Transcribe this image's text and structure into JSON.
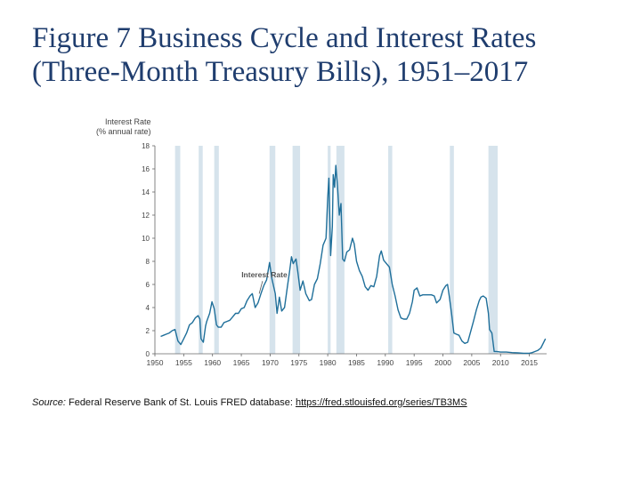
{
  "slide": {
    "title_line1": "Figure 7 Business Cycle and Interest Rates",
    "title_line2": "(Three-Month Treasury Bills), 1951–2017"
  },
  "source": {
    "label": "Source:",
    "text": " Federal Reserve Bank of St. Louis FRED database: ",
    "link": "https://fred.stlouisfed.org/series/TB3MS"
  },
  "chart_data": {
    "type": "line",
    "ylabel_line1": "Interest Rate",
    "ylabel_line2": "(% annual rate)",
    "xlim": [
      1950,
      2018
    ],
    "ylim": [
      0,
      18
    ],
    "x_ticks": [
      1950,
      1955,
      1960,
      1965,
      1970,
      1975,
      1980,
      1985,
      1990,
      1995,
      2000,
      2005,
      2010,
      2015
    ],
    "y_ticks": [
      0,
      2,
      4,
      6,
      8,
      10,
      12,
      14,
      16,
      18
    ],
    "grid": false,
    "recession_color": "#d6e3ec",
    "line_color": "#1f6f9a",
    "recessions": [
      [
        1953.5,
        1954.4
      ],
      [
        1957.6,
        1958.3
      ],
      [
        1960.3,
        1961.1
      ],
      [
        1969.9,
        1970.9
      ],
      [
        1973.9,
        1975.2
      ],
      [
        1980.0,
        1980.5
      ],
      [
        1981.5,
        1982.9
      ],
      [
        1990.5,
        1991.2
      ],
      [
        2001.2,
        2001.9
      ],
      [
        2007.9,
        2009.5
      ]
    ],
    "series": [
      {
        "name": "Interest Rate",
        "x": [
          1951.0,
          1951.5,
          1952.0,
          1952.5,
          1953.0,
          1953.5,
          1954.0,
          1954.5,
          1955.0,
          1955.5,
          1956.0,
          1956.5,
          1957.0,
          1957.5,
          1957.8,
          1958.0,
          1958.4,
          1958.8,
          1959.0,
          1959.5,
          1959.9,
          1960.3,
          1960.7,
          1961.0,
          1961.5,
          1962.0,
          1962.5,
          1963.0,
          1963.5,
          1964.0,
          1964.5,
          1965.0,
          1965.5,
          1966.0,
          1966.5,
          1966.9,
          1967.4,
          1967.9,
          1968.4,
          1968.9,
          1969.4,
          1969.9,
          1970.3,
          1970.9,
          1971.2,
          1971.6,
          1972.0,
          1972.5,
          1973.0,
          1973.4,
          1973.7,
          1974.0,
          1974.5,
          1974.8,
          1975.2,
          1975.7,
          1976.2,
          1976.8,
          1977.2,
          1977.7,
          1978.2,
          1978.7,
          1979.2,
          1979.7,
          1980.0,
          1980.2,
          1980.5,
          1980.8,
          1980.95,
          1981.2,
          1981.4,
          1981.7,
          1982.0,
          1982.3,
          1982.6,
          1982.9,
          1983.3,
          1983.8,
          1984.3,
          1984.6,
          1985.0,
          1985.5,
          1986.0,
          1986.5,
          1987.0,
          1987.5,
          1988.0,
          1988.5,
          1989.0,
          1989.3,
          1989.7,
          1990.2,
          1990.7,
          1991.2,
          1991.7,
          1992.2,
          1992.7,
          1993.2,
          1993.7,
          1994.2,
          1994.7,
          1995.0,
          1995.5,
          1996.0,
          1996.5,
          1997.0,
          1997.5,
          1998.0,
          1998.5,
          1998.9,
          1999.5,
          2000.0,
          2000.5,
          2000.8,
          2001.1,
          2001.5,
          2001.9,
          2002.3,
          2002.8,
          2003.3,
          2003.8,
          2004.3,
          2004.8,
          2005.3,
          2005.8,
          2006.3,
          2006.6,
          2007.0,
          2007.5,
          2007.9,
          2008.1,
          2008.5,
          2008.9,
          2009.3,
          2010.0,
          2011.0,
          2012.0,
          2013.0,
          2014.0,
          2015.0,
          2015.5,
          2016.0,
          2016.5,
          2017.0,
          2017.4,
          2017.8
        ],
        "values": [
          1.5,
          1.6,
          1.7,
          1.8,
          2.0,
          2.1,
          1.1,
          0.8,
          1.3,
          1.8,
          2.5,
          2.7,
          3.1,
          3.3,
          3.0,
          1.3,
          1.0,
          2.4,
          2.8,
          3.5,
          4.5,
          3.9,
          2.5,
          2.3,
          2.3,
          2.7,
          2.8,
          2.9,
          3.2,
          3.5,
          3.5,
          3.9,
          4.0,
          4.6,
          5.0,
          5.2,
          4.0,
          4.4,
          5.2,
          5.9,
          6.4,
          7.9,
          6.5,
          5.2,
          3.5,
          4.9,
          3.7,
          4.0,
          5.8,
          7.2,
          8.4,
          7.8,
          8.2,
          7.1,
          5.5,
          6.3,
          5.2,
          4.6,
          4.7,
          6.0,
          6.5,
          7.8,
          9.4,
          10.0,
          13.5,
          15.2,
          8.5,
          11.0,
          15.5,
          14.4,
          16.3,
          14.5,
          12.0,
          13.0,
          8.2,
          8.0,
          8.8,
          9.0,
          10.0,
          9.5,
          8.0,
          7.2,
          6.7,
          5.8,
          5.5,
          5.9,
          5.8,
          6.7,
          8.5,
          8.9,
          8.1,
          7.8,
          7.5,
          6.0,
          5.0,
          3.8,
          3.1,
          3.0,
          3.0,
          3.5,
          4.5,
          5.5,
          5.7,
          5.0,
          5.1,
          5.1,
          5.1,
          5.1,
          5.0,
          4.4,
          4.7,
          5.5,
          5.9,
          6.0,
          5.0,
          3.5,
          1.8,
          1.7,
          1.6,
          1.1,
          0.9,
          1.0,
          1.9,
          2.8,
          3.8,
          4.6,
          4.9,
          5.0,
          4.8,
          3.5,
          2.1,
          1.8,
          0.2,
          0.2,
          0.15,
          0.15,
          0.1,
          0.08,
          0.05,
          0.05,
          0.1,
          0.2,
          0.3,
          0.5,
          0.9,
          1.3
        ]
      }
    ],
    "annotations": [
      {
        "text": "Interest Rate",
        "x": 1969.0,
        "y": 6.6,
        "arrow_to_x": 1968.1,
        "arrow_to_y": 5.2
      }
    ]
  }
}
